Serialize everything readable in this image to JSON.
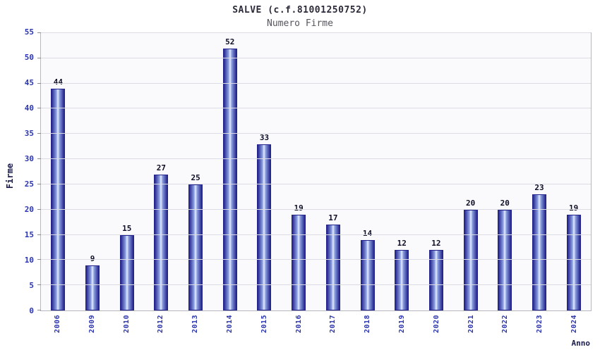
{
  "chart_data": {
    "type": "bar",
    "title": "SALVE (c.f.81001250752)",
    "subtitle": "Numero Firme",
    "xlabel": "Anno",
    "ylabel": "Firme",
    "categories": [
      "2006",
      "2009",
      "2010",
      "2012",
      "2013",
      "2014",
      "2015",
      "2016",
      "2017",
      "2018",
      "2019",
      "2020",
      "2021",
      "2022",
      "2023",
      "2024"
    ],
    "values": [
      44,
      9,
      15,
      27,
      25,
      52,
      33,
      19,
      17,
      14,
      12,
      12,
      20,
      20,
      23,
      19
    ],
    "ylim": [
      0,
      55
    ],
    "ytick_step": 5,
    "grid": true,
    "legend": "none",
    "colors": {
      "bar_dark": "#23238c",
      "bar_mid": "#8a9fe0",
      "bar_light": "#e6ecfc",
      "tick": "#2b35af",
      "grid": "#dcdce4",
      "plot_bg": "#fafafc",
      "border": "#b8b8c0",
      "title": "#2b2b3a",
      "subtitle": "#55555e",
      "axis_title": "#1a1a4e",
      "value_label": "#0d0d26"
    }
  }
}
